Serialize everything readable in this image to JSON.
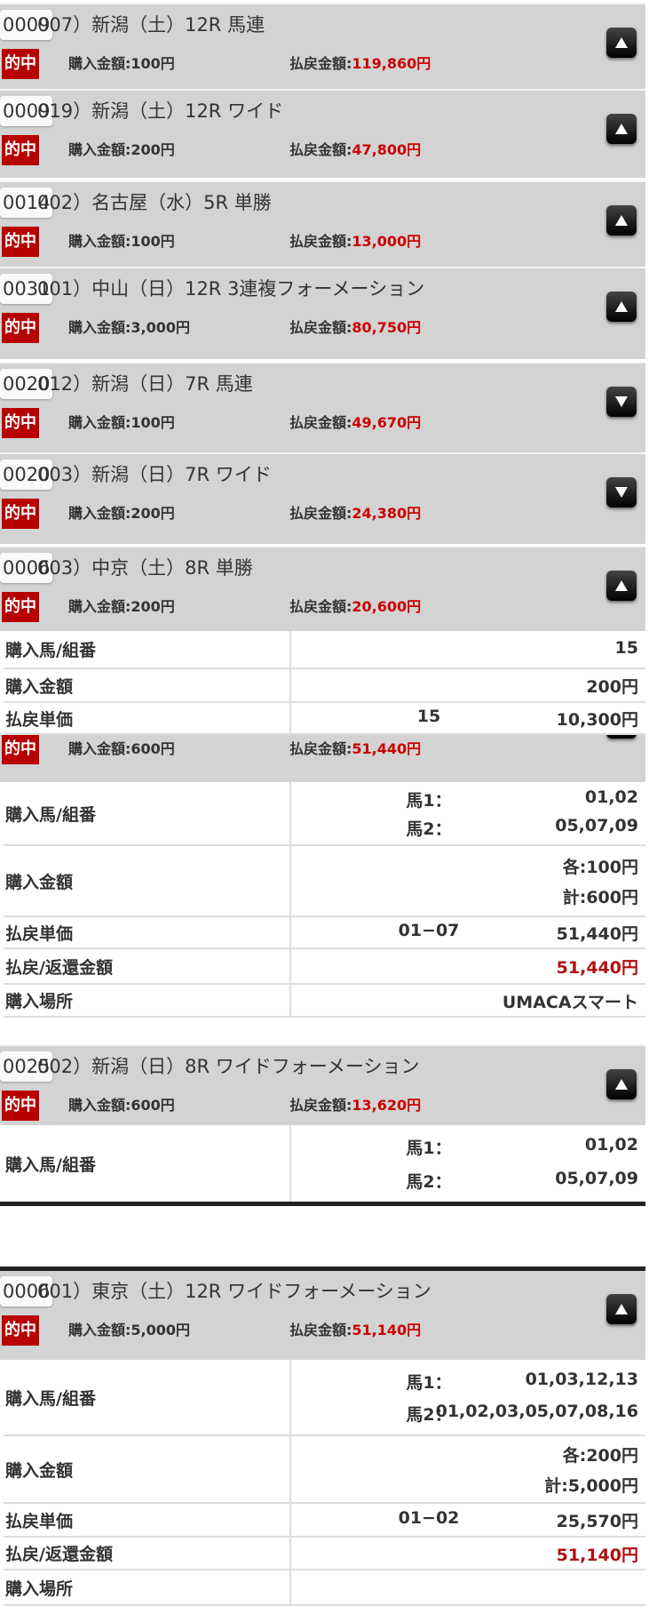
{
  "colors": {
    "hit_badge": "#b80000",
    "payout": "#cc0000",
    "header_bg": "#d3d3d3"
  },
  "cards": [
    {
      "id": "0009",
      "title": "007）新潟（土）12R 馬連",
      "hit": "的中",
      "buy": "購入金額:100円",
      "pay_label": "払戻金額:",
      "pay_value": "119,860円",
      "arrow": "arrow-up-icon"
    },
    {
      "id": "0009",
      "title": "019）新潟（土）12R ワイド",
      "hit": "的中",
      "buy": "購入金額:200円",
      "pay_label": "払戻金額:",
      "pay_value": "47,800円",
      "arrow": "arrow-up-icon"
    },
    {
      "id": "0014",
      "title": "002）名古屋（水）5R 単勝",
      "hit": "的中",
      "buy": "購入金額:100円",
      "pay_label": "払戻金額:",
      "pay_value": "13,000円",
      "arrow": "arrow-up-icon"
    },
    {
      "id": "0031",
      "title": "001）中山（日）12R 3連複フォーメーション",
      "hit": "的中",
      "buy": "購入金額:3,000円",
      "pay_label": "払戻金額:",
      "pay_value": "80,750円",
      "arrow": "arrow-up-icon"
    },
    {
      "id": "0020",
      "title": "012）新潟（日）7R 馬連",
      "hit": "的中",
      "buy": "購入金額:100円",
      "pay_label": "払戻金額:",
      "pay_value": "49,670円",
      "arrow": "arrow-down-icon"
    },
    {
      "id": "0020",
      "title": "003）新潟（日）7R ワイド",
      "hit": "的中",
      "buy": "購入金額:200円",
      "pay_label": "払戻金額:",
      "pay_value": "24,380円",
      "arrow": "arrow-down-icon"
    },
    {
      "id": "0006",
      "title": "003）中京（土）8R 単勝",
      "hit": "的中",
      "buy": "購入金額:200円",
      "pay_label": "払戻金額:",
      "pay_value": "20,600円",
      "arrow": "arrow-up-icon"
    },
    {
      "hit": "的中",
      "buy": "購入金額:600円",
      "pay_label": "払戻金額:",
      "pay_value": "51,440円",
      "arrow": "arrow-up-icon"
    },
    {
      "id": "0025",
      "title": "002）新潟（日）8R ワイドフォーメーション",
      "hit": "的中",
      "buy": "購入金額:600円",
      "pay_label": "払戻金額:",
      "pay_value": "13,620円",
      "arrow": "arrow-up-icon"
    },
    {
      "id": "0006",
      "title": "001）東京（土）12R ワイドフォーメーション",
      "hit": "的中",
      "buy": "購入金額:5,000円",
      "pay_label": "払戻金額:",
      "pay_value": "51,140円",
      "arrow": "arrow-up-icon"
    }
  ],
  "tables": [
    {
      "rows": [
        {
          "label": "購入馬/組番",
          "lines": [
            {
              "value": "15"
            }
          ]
        },
        {
          "label": "購入金額",
          "lines": [
            {
              "value": "200円"
            }
          ]
        },
        {
          "label": "払戻単価",
          "lines": [
            {
              "mid": "15",
              "value": "10,300円"
            }
          ]
        }
      ]
    },
    {
      "rows": [
        {
          "label": "購入馬/組番",
          "lines": [
            {
              "mid": "馬1：",
              "value": "01,02"
            },
            {
              "mid": "馬2：",
              "value": "05,07,09"
            }
          ]
        },
        {
          "label": "購入金額",
          "lines": [
            {
              "value": "各:100円"
            },
            {
              "value": "計:600円"
            }
          ]
        },
        {
          "label": "払戻単価",
          "lines": [
            {
              "mid": "01−07",
              "value": "51,440円"
            }
          ]
        },
        {
          "label": "払戻/返還金額",
          "lines": [
            {
              "value": "51,440円",
              "red": true
            }
          ]
        },
        {
          "label": "購入場所",
          "lines": [
            {
              "value": "UMACAスマート"
            }
          ]
        }
      ]
    },
    {
      "rows": [
        {
          "label": "購入馬/組番",
          "lines": [
            {
              "mid": "馬1：",
              "value": "01,02"
            },
            {
              "mid": "馬2：",
              "value": "05,07,09"
            }
          ]
        }
      ]
    },
    {
      "rows": [
        {
          "label": "購入馬/組番",
          "lines": [
            {
              "mid": "馬1：",
              "value": "01,03,12,13"
            },
            {
              "mid": "馬2：",
              "value": "01,02,03,05,07,08,16"
            }
          ]
        },
        {
          "label": "購入金額",
          "lines": [
            {
              "value": "各:200円"
            },
            {
              "value": "計:5,000円"
            }
          ]
        },
        {
          "label": "払戻単価",
          "lines": [
            {
              "mid": "01−02",
              "value": "25,570円"
            }
          ]
        },
        {
          "label": "払戻/返還金額",
          "lines": [
            {
              "value": "51,140円",
              "red": true
            }
          ]
        },
        {
          "label": "購入場所",
          "lines": [
            {
              "value": ""
            }
          ]
        }
      ]
    }
  ]
}
